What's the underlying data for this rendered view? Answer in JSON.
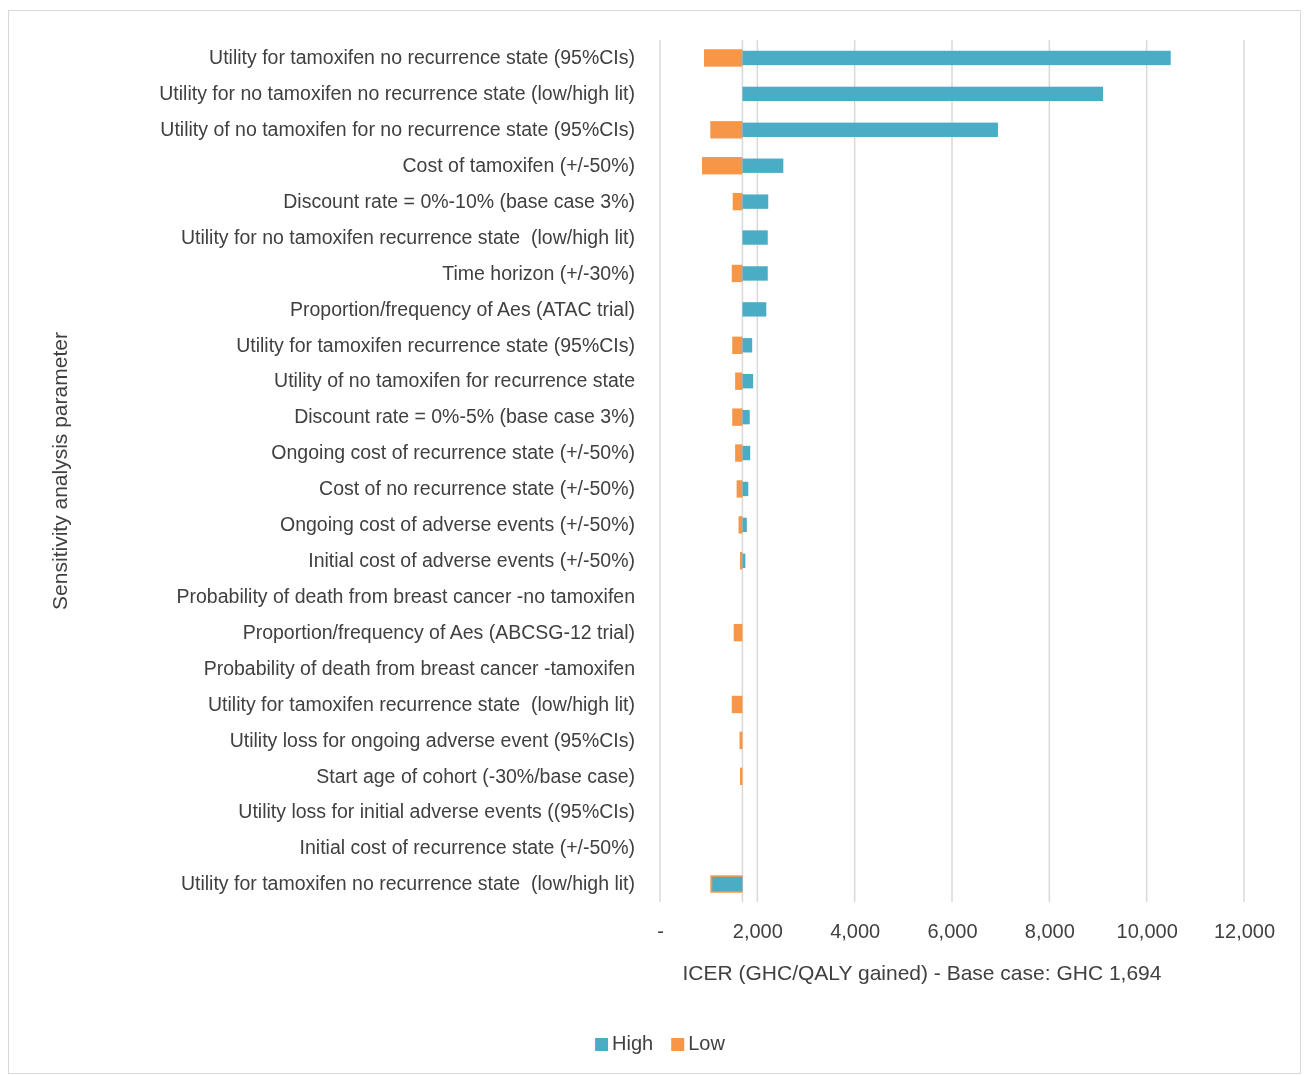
{
  "chart_data": {
    "type": "bar",
    "orientation": "horizontal",
    "categories": [
      "Utility for tamoxifen no recurrence state (95%CIs)",
      "Utility for no tamoxifen no recurrence state (low/high lit)",
      "Utility of no tamoxifen for no recurrence state (95%CIs)",
      "Cost of tamoxifen (+/-50%)",
      "Discount rate = 0%-10% (base case 3%)",
      "Utility for no tamoxifen recurrence state  (low/high lit)",
      "Time horizon (+/-30%)",
      "Proportion/frequency of Aes (ATAC trial)",
      "Utility for tamoxifen recurrence state (95%CIs)",
      "Utility of no tamoxifen for recurrence state",
      "Discount rate = 0%-5% (base case 3%)",
      "Ongoing cost of recurrence state (+/-50%)",
      "Cost of no recurrence state (+/-50%)",
      "Ongoing cost of adverse events (+/-50%)",
      "Initial cost of adverse events (+/-50%)",
      "Probability of death from breast cancer -no tamoxifen",
      "Proportion/frequency of Aes (ABCSG-12 trial)",
      "Probability of death from breast cancer -tamoxifen",
      "Utility for tamoxifen recurrence state  (low/high lit)",
      "Utility loss for ongoing adverse event (95%CIs)",
      "Start age of cohort (-30%/base case)",
      "Utility loss for initial adverse events ((95%CIs)",
      "Initial cost of recurrence state (+/-50%)",
      "Utility for tamoxifen no recurrence state  (low/high lit)"
    ],
    "series": [
      {
        "name": "High",
        "color": "#4bacc6",
        "base": [
          1694,
          1694,
          1694,
          1694,
          1694,
          1694,
          1694,
          1694,
          1694,
          1694,
          1694,
          1694,
          1694,
          1694,
          1694,
          null,
          null,
          null,
          null,
          null,
          null,
          null,
          null,
          1694
        ],
        "values": [
          8800,
          7410,
          5250,
          840,
          530,
          520,
          520,
          490,
          200,
          220,
          150,
          160,
          120,
          90,
          60,
          null,
          null,
          null,
          null,
          null,
          null,
          null,
          null,
          -620
        ]
      },
      {
        "name": "Low",
        "color": "#f79646",
        "base": [
          1694,
          null,
          1694,
          1694,
          1694,
          null,
          1694,
          null,
          1694,
          1694,
          1694,
          1694,
          1694,
          1694,
          1694,
          null,
          1694,
          null,
          1694,
          1694,
          1694,
          null,
          null,
          1694
        ],
        "values": [
          -790,
          null,
          -660,
          -830,
          -200,
          null,
          -220,
          null,
          -210,
          -150,
          -210,
          -150,
          -120,
          -80,
          -50,
          null,
          -180,
          null,
          -220,
          -60,
          -50,
          null,
          null,
          -660
        ]
      }
    ],
    "xlim": [
      0,
      12000
    ],
    "xticks": [
      {
        "value": 0,
        "label": "-"
      },
      {
        "value": 2000,
        "label": "2,000"
      },
      {
        "value": 4000,
        "label": "4,000"
      },
      {
        "value": 6000,
        "label": "6,000"
      },
      {
        "value": 8000,
        "label": "8,000"
      },
      {
        "value": 10000,
        "label": "10,000"
      },
      {
        "value": 12000,
        "label": "12,000"
      }
    ],
    "xlabel": "ICER (GHC/QALY gained) - Base case: GHC 1,694",
    "ylabel": "Sensitivity analysis parameter",
    "ref_lines": [
      {
        "axis": "x",
        "value": 1694,
        "color": "#d9d9d9"
      }
    ],
    "grid": "x",
    "legend": "bottom"
  }
}
